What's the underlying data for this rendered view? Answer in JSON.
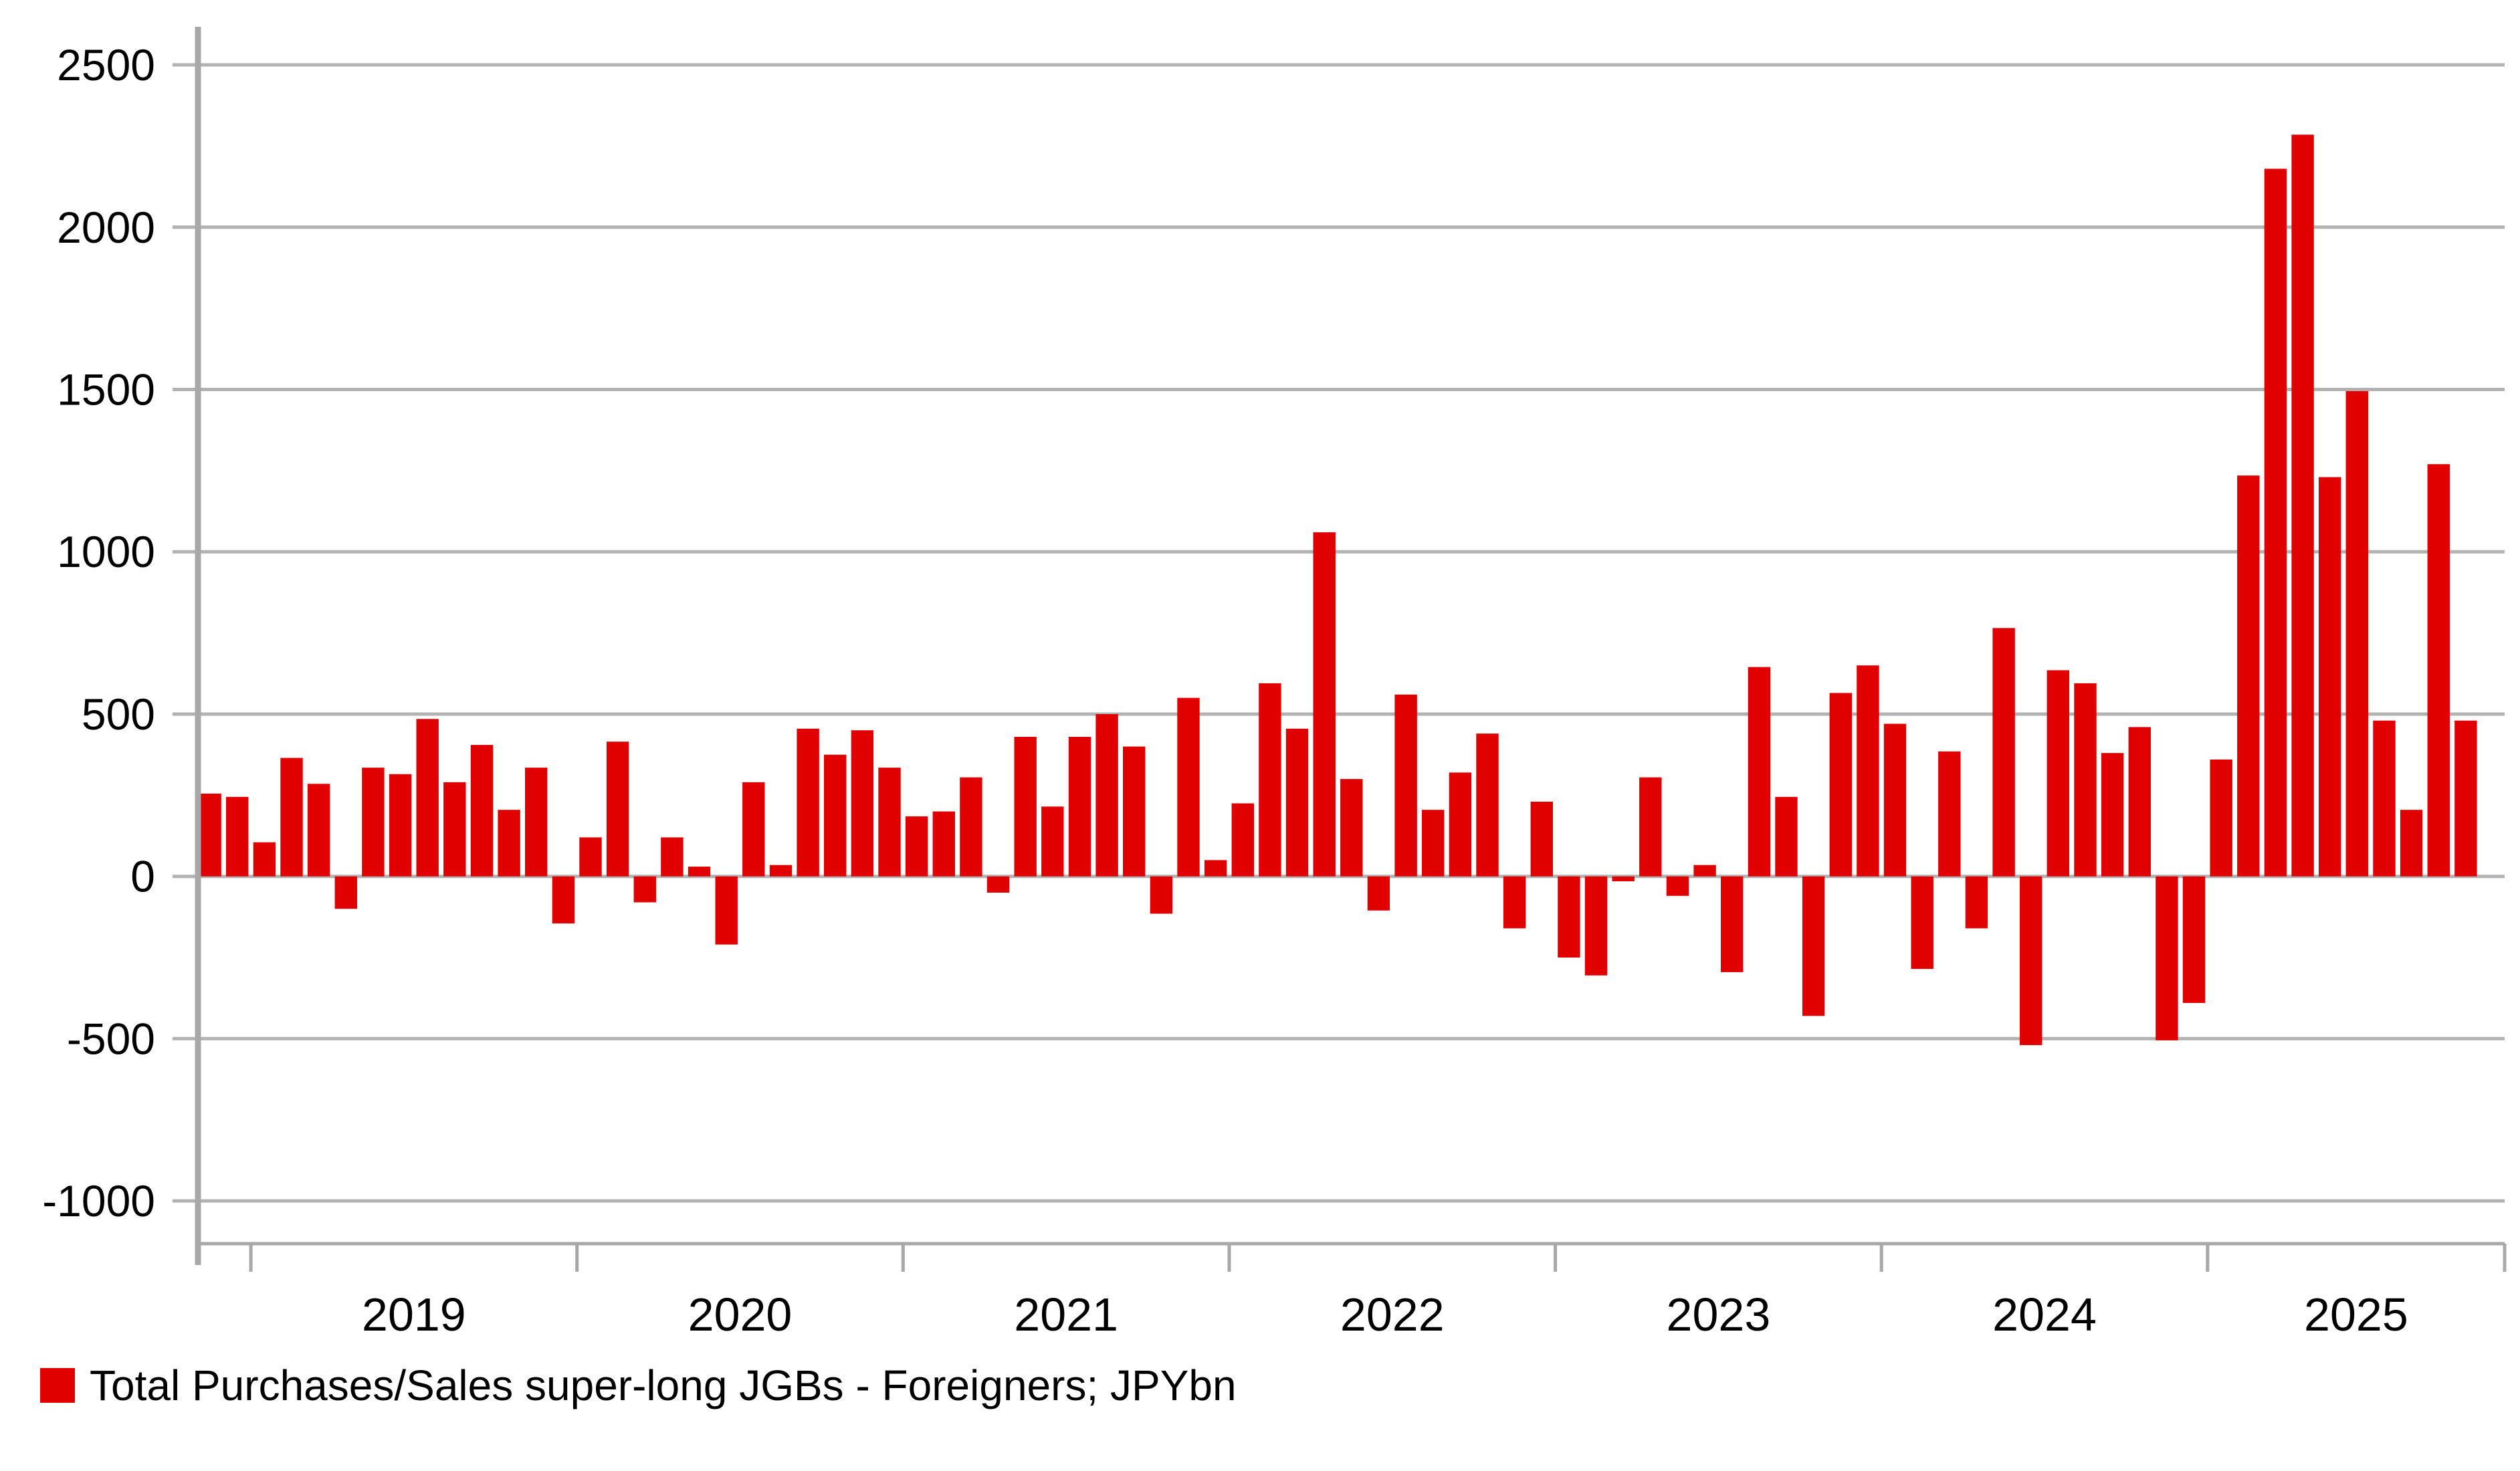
{
  "legend": {
    "label": "Total Purchases/Sales super-long JGBs - Foreigners; JPYbn",
    "swatch_color": "#e00000"
  },
  "chart_data": {
    "type": "bar",
    "title": "",
    "xlabel": "",
    "ylabel": "",
    "unit": "JPYbn",
    "grid": true,
    "legend_position": "bottom-left",
    "background": "#ffffff",
    "bar_color": "#e00000",
    "grid_color": "#b2b2b2",
    "axis_color": "#a8a8a8",
    "text_color": "#000000",
    "ylim": [
      -1190,
      2617
    ],
    "y_ticks": [
      {
        "label": "2500",
        "value": 2500
      },
      {
        "label": "2000",
        "value": 2000
      },
      {
        "label": "1500",
        "value": 1500
      },
      {
        "label": "1000",
        "value": 1000
      },
      {
        "label": "500",
        "value": 500
      },
      {
        "label": "0",
        "value": 0
      },
      {
        "label": "-500",
        "value": -500
      },
      {
        "label": "-1000",
        "value": -1000
      }
    ],
    "year_labels": [
      "2019",
      "2020",
      "2021",
      "2022",
      "2023",
      "2024",
      "2025"
    ],
    "categories": [
      "2018-11",
      "2018-12",
      "2019-01",
      "2019-02",
      "2019-03",
      "2019-04",
      "2019-05",
      "2019-06",
      "2019-07",
      "2019-08",
      "2019-09",
      "2019-10",
      "2019-11",
      "2019-12",
      "2020-01",
      "2020-02",
      "2020-03",
      "2020-04",
      "2020-05",
      "2020-06",
      "2020-07",
      "2020-08",
      "2020-09",
      "2020-10",
      "2020-11",
      "2020-12",
      "2021-01",
      "2021-02",
      "2021-03",
      "2021-04",
      "2021-05",
      "2021-06",
      "2021-07",
      "2021-08",
      "2021-09",
      "2021-10",
      "2021-11",
      "2021-12",
      "2022-01",
      "2022-02",
      "2022-03",
      "2022-04",
      "2022-05",
      "2022-06",
      "2022-07",
      "2022-08",
      "2022-09",
      "2022-10",
      "2022-11",
      "2022-12",
      "2023-01",
      "2023-02",
      "2023-03",
      "2023-04",
      "2023-05",
      "2023-06",
      "2023-07",
      "2023-08",
      "2023-09",
      "2023-10",
      "2023-11",
      "2023-12",
      "2024-01",
      "2024-02",
      "2024-03",
      "2024-04",
      "2024-05",
      "2024-06",
      "2024-07",
      "2024-08",
      "2024-09",
      "2024-10",
      "2024-11",
      "2024-12",
      "2025-01",
      "2025-02",
      "2025-03",
      "2025-04",
      "2025-05",
      "2025-06",
      "2025-07",
      "2025-08",
      "2025-09",
      "2025-10"
    ],
    "series": [
      {
        "name": "Total Purchases/Sales super-long JGBs - Foreigners; JPYbn",
        "values": [
          255,
          245,
          105,
          365,
          285,
          -100,
          335,
          315,
          485,
          290,
          405,
          205,
          335,
          -145,
          120,
          415,
          -80,
          120,
          30,
          -210,
          290,
          35,
          455,
          375,
          450,
          335,
          185,
          200,
          305,
          -50,
          430,
          215,
          430,
          500,
          400,
          -115,
          550,
          50,
          225,
          595,
          455,
          1060,
          300,
          -105,
          560,
          205,
          320,
          440,
          -160,
          230,
          -250,
          -305,
          -15,
          305,
          -60,
          35,
          -295,
          645,
          245,
          -430,
          565,
          650,
          470,
          -285,
          385,
          -160,
          765,
          -520,
          635,
          595,
          380,
          460,
          -505,
          -390,
          360,
          1235,
          2180,
          2285,
          1230,
          1495,
          480,
          205,
          1270,
          480
        ]
      }
    ]
  }
}
